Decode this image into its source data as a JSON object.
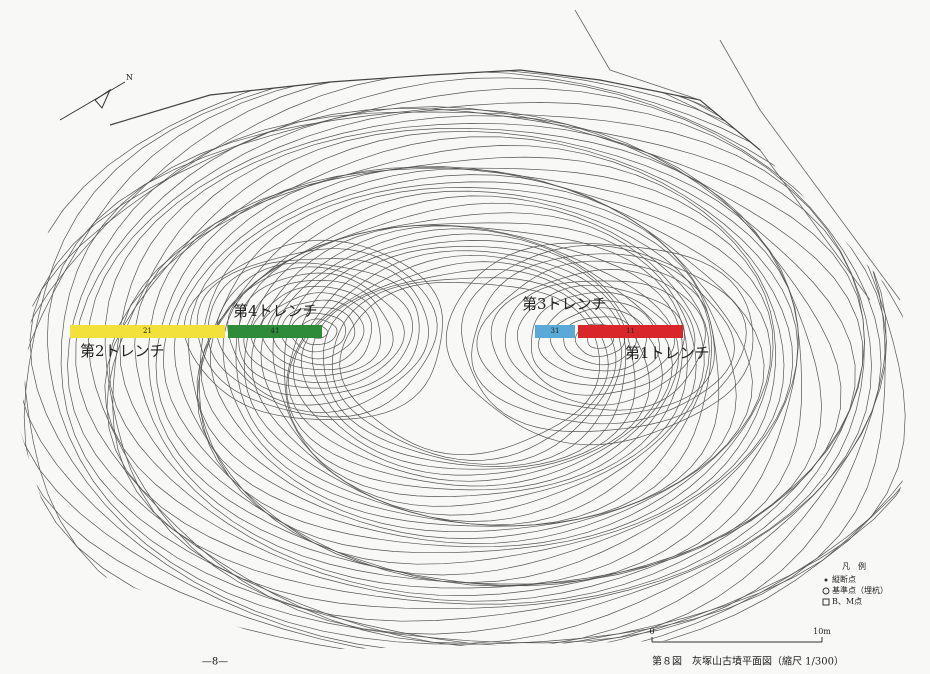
{
  "map": {
    "north": "N",
    "trenches": [
      {
        "label": "第2トレンチ",
        "number": "21",
        "color": "#f2e13a"
      },
      {
        "label": "第4トレンチ",
        "number": "41",
        "color": "#2e8b3a"
      },
      {
        "label": "第3トレンチ",
        "number": "31",
        "color": "#5aa9d6"
      },
      {
        "label": "第1トレンチ",
        "number": "11",
        "color": "#d9262b"
      }
    ],
    "legend": {
      "title": "凡　例",
      "items": [
        "縦断点",
        "基準点（埋杭）",
        "B、M点"
      ]
    },
    "scale": {
      "start": "0",
      "end": "10m"
    },
    "caption": "第８図　灰塚山古墳平面図（縮尺 1/300）",
    "page_number": "—8—"
  }
}
